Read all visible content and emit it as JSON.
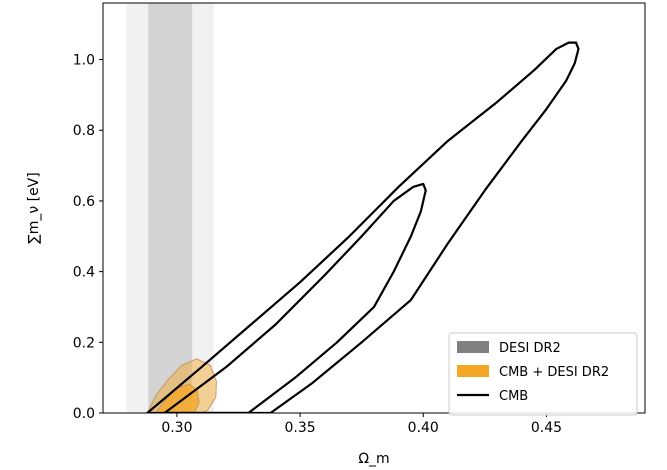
{
  "chart_data": {
    "type": "contour",
    "xlabel": "Ω_m",
    "ylabel": "∑m_ν [eV]",
    "xlim": [
      0.27,
      0.49
    ],
    "ylim": [
      0.0,
      1.16
    ],
    "xticks": [
      0.3,
      0.35,
      0.4,
      0.45
    ],
    "xtick_labels": [
      "0.30",
      "0.35",
      "0.40",
      "0.45"
    ],
    "yticks": [
      0.0,
      0.2,
      0.4,
      0.6,
      0.8,
      1.0
    ],
    "ytick_labels": [
      "0.0",
      "0.2",
      "0.4",
      "0.6",
      "0.8",
      "1.0"
    ],
    "legend_position": "lower-right",
    "series": [
      {
        "name": "DESI DR2",
        "kind": "vertical-bands",
        "color": "#808080",
        "bands": [
          {
            "level": "95%",
            "x_range": [
              0.2795,
              0.315
            ],
            "opacity": 0.11
          },
          {
            "level": "68%",
            "x_range": [
              0.2884,
              0.3062
            ],
            "opacity": 0.27
          }
        ]
      },
      {
        "name": "CMB + DESI DR2",
        "kind": "filled-contours",
        "color": "#f5a623",
        "edge_color": "#c8965a",
        "contours": [
          {
            "level": "95%",
            "opacity": 0.45,
            "points": [
              [
                0.288,
                0.0
              ],
              [
                0.2915,
                0.05
              ],
              [
                0.2965,
                0.095
              ],
              [
                0.302,
                0.135
              ],
              [
                0.308,
                0.153
              ],
              [
                0.3135,
                0.135
              ],
              [
                0.316,
                0.09
              ],
              [
                0.3158,
                0.045
              ],
              [
                0.3125,
                0.008
              ],
              [
                0.31,
                0.0
              ]
            ]
          },
          {
            "level": "68%",
            "opacity": 0.75,
            "points": [
              [
                0.2915,
                0.0
              ],
              [
                0.295,
                0.035
              ],
              [
                0.3,
                0.07
              ],
              [
                0.305,
                0.082
              ],
              [
                0.3082,
                0.065
              ],
              [
                0.309,
                0.03
              ],
              [
                0.307,
                0.0
              ]
            ]
          }
        ]
      },
      {
        "name": "CMB",
        "kind": "line-contours",
        "color": "#000000",
        "contours": [
          {
            "level": "95%",
            "points": [
              [
                0.288,
                0.0
              ],
              [
                0.31,
                0.13
              ],
              [
                0.33,
                0.25
              ],
              [
                0.35,
                0.37
              ],
              [
                0.37,
                0.5
              ],
              [
                0.39,
                0.64
              ],
              [
                0.41,
                0.77
              ],
              [
                0.43,
                0.88
              ],
              [
                0.445,
                0.97
              ],
              [
                0.454,
                1.03
              ],
              [
                0.459,
                1.048
              ],
              [
                0.462,
                1.048
              ],
              [
                0.463,
                1.03
              ],
              [
                0.4615,
                0.99
              ],
              [
                0.458,
                0.94
              ],
              [
                0.45,
                0.86
              ],
              [
                0.44,
                0.77
              ],
              [
                0.425,
                0.63
              ],
              [
                0.41,
                0.48
              ],
              [
                0.395,
                0.32
              ],
              [
                0.375,
                0.2
              ],
              [
                0.355,
                0.085
              ],
              [
                0.338,
                0.0
              ]
            ]
          },
          {
            "level": "68%",
            "points": [
              [
                0.295,
                0.0
              ],
              [
                0.32,
                0.13
              ],
              [
                0.34,
                0.25
              ],
              [
                0.36,
                0.39
              ],
              [
                0.375,
                0.5
              ],
              [
                0.388,
                0.6
              ],
              [
                0.396,
                0.64
              ],
              [
                0.4,
                0.648
              ],
              [
                0.401,
                0.63
              ],
              [
                0.399,
                0.57
              ],
              [
                0.395,
                0.5
              ],
              [
                0.388,
                0.4
              ],
              [
                0.38,
                0.3
              ],
              [
                0.365,
                0.2
              ],
              [
                0.348,
                0.1
              ],
              [
                0.329,
                0.0
              ]
            ]
          }
        ]
      }
    ]
  },
  "legend": {
    "items": [
      {
        "label": "DESI DR2",
        "color": "#808080",
        "kind": "patch"
      },
      {
        "label": "CMB + DESI DR2",
        "color": "#f5a623",
        "kind": "patch"
      },
      {
        "label": "CMB",
        "color": "#000000",
        "kind": "line"
      }
    ]
  }
}
